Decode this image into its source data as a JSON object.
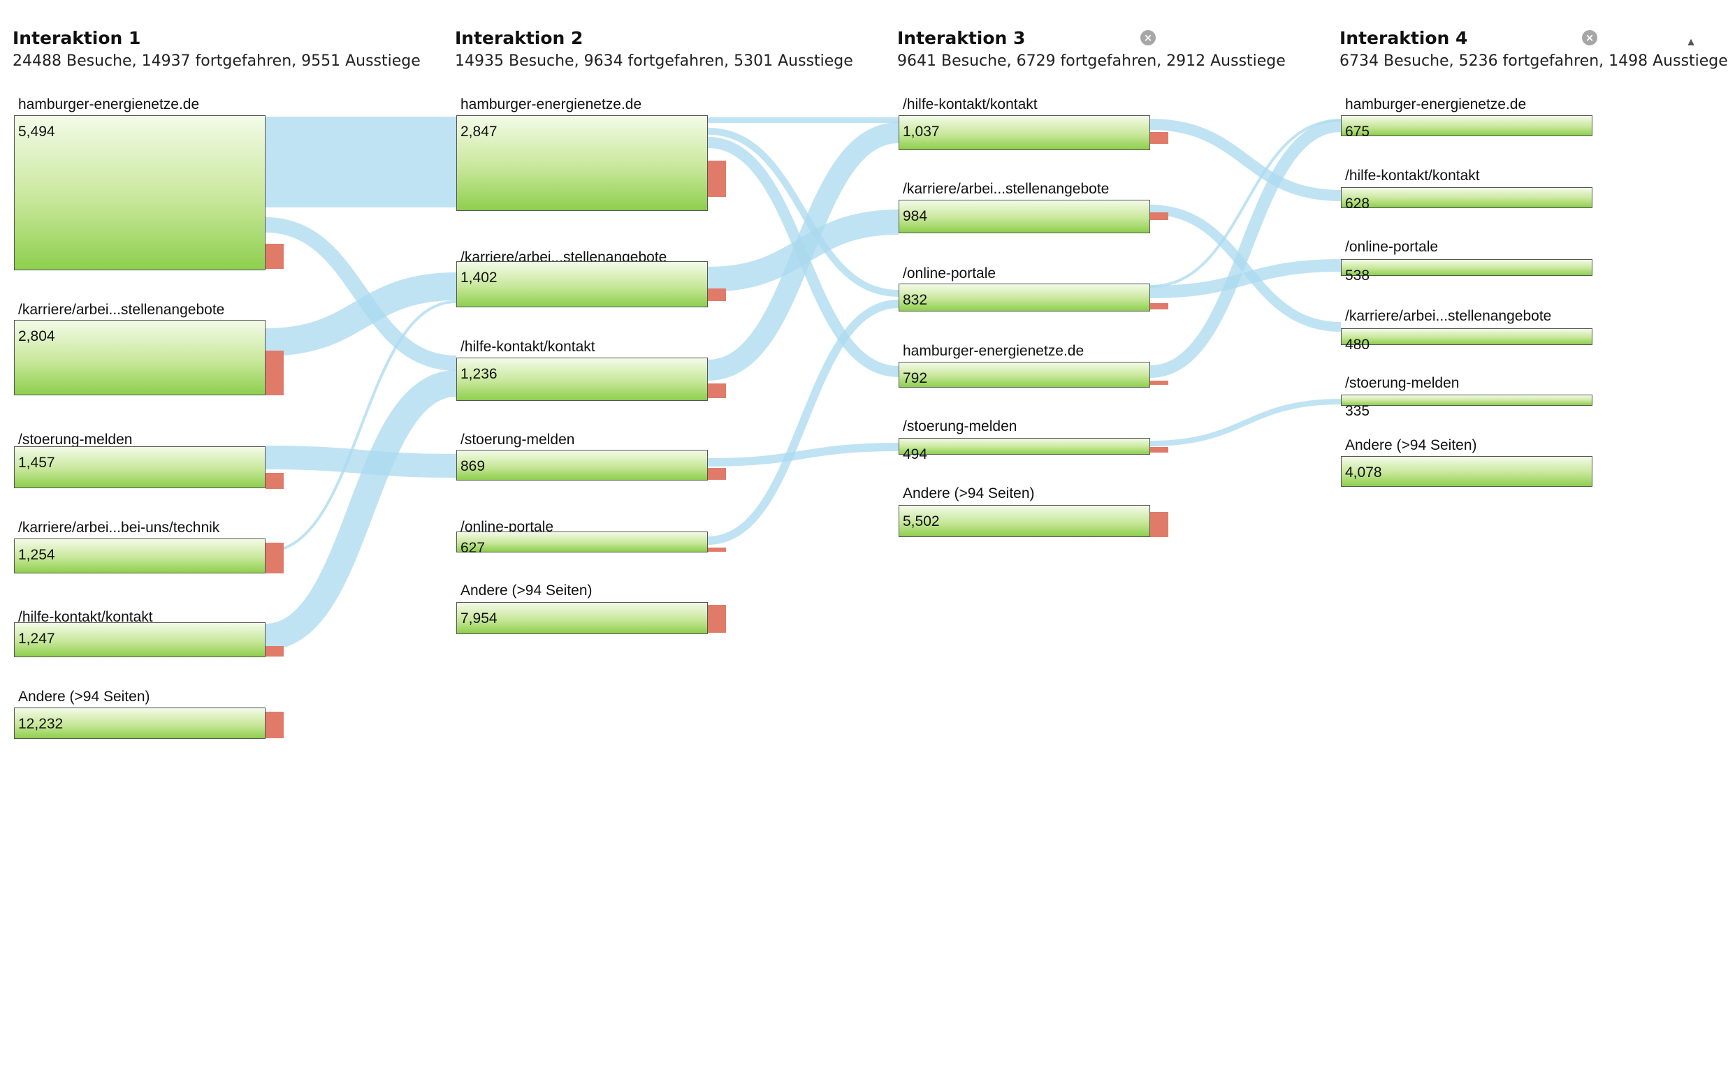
{
  "colors": {
    "flow": "#a9d9ef",
    "exit": "#e07b6a",
    "node_border": "#555555"
  },
  "columns": [
    {
      "title": "Interaktion 1",
      "summary": "24488 Besuche, 14937 fortgefahren, 9551 Ausstiege",
      "closable": false,
      "nodes": [
        {
          "label": "hamburger-energienetze.de",
          "value": "5,494"
        },
        {
          "label": "/karriere/arbei...stellenangebote",
          "value": "2,804"
        },
        {
          "label": "/stoerung-melden",
          "value": "1,457"
        },
        {
          "label": "/karriere/arbei...bei-uns/technik",
          "value": "1,254"
        },
        {
          "label": "/hilfe-kontakt/kontakt",
          "value": "1,247"
        },
        {
          "label": "Andere (>94 Seiten)",
          "value": "12,232"
        }
      ]
    },
    {
      "title": "Interaktion 2",
      "summary": "14935 Besuche, 9634 fortgefahren, 5301 Ausstiege",
      "closable": false,
      "nodes": [
        {
          "label": "hamburger-energienetze.de",
          "value": "2,847"
        },
        {
          "label": "/karriere/arbei...stellenangebote",
          "value": "1,402"
        },
        {
          "label": "/hilfe-kontakt/kontakt",
          "value": "1,236"
        },
        {
          "label": "/stoerung-melden",
          "value": "869"
        },
        {
          "label": "/online-portale",
          "value": "627"
        },
        {
          "label": "Andere (>94 Seiten)",
          "value": "7,954"
        }
      ]
    },
    {
      "title": "Interaktion 3",
      "summary": "9641 Besuche, 6729 fortgefahren, 2912 Ausstiege",
      "closable": true,
      "nodes": [
        {
          "label": "/hilfe-kontakt/kontakt",
          "value": "1,037"
        },
        {
          "label": "/karriere/arbei...stellenangebote",
          "value": "984"
        },
        {
          "label": "/online-portale",
          "value": "832"
        },
        {
          "label": "hamburger-energienetze.de",
          "value": "792"
        },
        {
          "label": "/stoerung-melden",
          "value": "494"
        },
        {
          "label": "Andere (>94 Seiten)",
          "value": "5,502"
        }
      ]
    },
    {
      "title": "Interaktion 4",
      "summary": "6734 Besuche, 5236 fortgefahren, 1498 Ausstiege",
      "closable": true,
      "nodes": [
        {
          "label": "hamburger-energienetze.de",
          "value": "675"
        },
        {
          "label": "/hilfe-kontakt/kontakt",
          "value": "628"
        },
        {
          "label": "/online-portale",
          "value": "538"
        },
        {
          "label": "/karriere/arbei...stellenangebote",
          "value": "480"
        },
        {
          "label": "/stoerung-melden",
          "value": "335"
        },
        {
          "label": "Andere (>94 Seiten)",
          "value": "4,078"
        }
      ]
    }
  ],
  "icons": {
    "close": "close-circle-icon",
    "scroll": "scroll-up-arrow-icon"
  }
}
